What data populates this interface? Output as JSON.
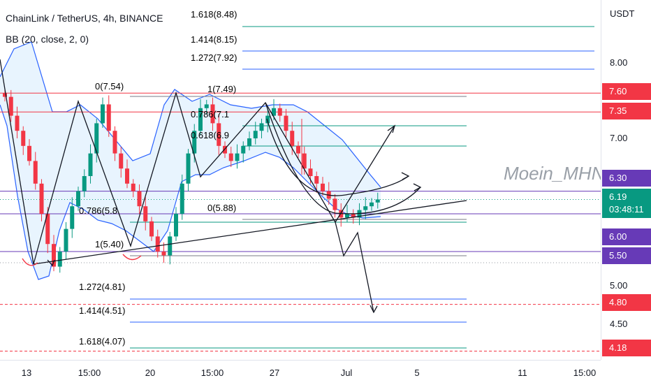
{
  "header": {
    "title": "ChainLink / TetherUS, 4h, BINANCE",
    "indicator": "BB (20, close, 2, 0)",
    "watermark": "Moein_MHN"
  },
  "price_axis": {
    "unit": "USDT",
    "ticks": [
      "8.00",
      "7.00",
      "5.00",
      "4.50"
    ],
    "badges": [
      {
        "label": "7.60",
        "color": "#f23645"
      },
      {
        "label": "7.35",
        "color": "#f23645"
      },
      {
        "label": "6.30",
        "color": "#673ab7"
      },
      {
        "label": "6.19",
        "sub": "03:48:11",
        "color": "#089981"
      },
      {
        "label": "6.00",
        "color": "#673ab7"
      },
      {
        "label": "5.50",
        "color": "#673ab7"
      },
      {
        "label": "4.80",
        "color": "#f23645"
      },
      {
        "label": "4.18",
        "color": "#f23645"
      }
    ]
  },
  "time_axis": {
    "ticks": [
      "13",
      "15:00",
      "20",
      "15:00",
      "27",
      "Jul",
      "5",
      "11",
      "15:00"
    ]
  },
  "fib_labels": [
    {
      "text": "1.618(8.48)",
      "color": "#089981"
    },
    {
      "text": "1.414(8.15)",
      "color": "#2962ff"
    },
    {
      "text": "1.272(7.92)",
      "color": "#2962ff"
    },
    {
      "text": "0(7.54)",
      "color": "#787b86"
    },
    {
      "text": "1(7.49)",
      "color": "#787b86"
    },
    {
      "text": "0.786(7.1",
      "color": "#089981"
    },
    {
      "text": "0.618(6.9",
      "color": "#089981"
    },
    {
      "text": "0.786(5.8",
      "color": "#089981"
    },
    {
      "text": "0(5.88)",
      "color": "#787b86"
    },
    {
      "text": "1(5.40)",
      "color": "#787b86"
    },
    {
      "text": "1.272(4.81)",
      "color": "#2962ff"
    },
    {
      "text": "1.414(4.51)",
      "color": "#2962ff"
    },
    {
      "text": "1.618(4.07)",
      "color": "#089981"
    }
  ],
  "chart_data": {
    "type": "candlestick",
    "symbol": "LINK/USDT",
    "timeframe": "4h",
    "ylim": [
      4.0,
      8.8
    ],
    "horizontal_levels": [
      {
        "price": 7.6,
        "color": "#f23645"
      },
      {
        "price": 7.35,
        "color": "#f23645"
      },
      {
        "price": 6.3,
        "color": "#673ab7"
      },
      {
        "price": 6.0,
        "color": "#673ab7"
      },
      {
        "price": 5.5,
        "color": "#673ab7"
      },
      {
        "price": 4.8,
        "color": "#f23645"
      },
      {
        "price": 4.18,
        "color": "#f23645"
      }
    ],
    "closes": [
      7.55,
      7.3,
      7.1,
      6.9,
      6.7,
      6.4,
      6.0,
      5.6,
      5.3,
      5.5,
      5.8,
      6.1,
      6.3,
      6.5,
      6.8,
      7.2,
      7.45,
      7.1,
      6.8,
      6.6,
      6.4,
      6.3,
      6.1,
      5.9,
      5.7,
      5.5,
      5.45,
      5.7,
      6.0,
      6.4,
      6.8,
      7.1,
      7.4,
      7.45,
      7.2,
      6.9,
      6.8,
      6.7,
      6.8,
      6.9,
      7.0,
      7.1,
      7.2,
      7.3,
      7.4,
      7.3,
      7.1,
      6.9,
      6.8,
      6.6,
      6.5,
      6.4,
      6.3,
      6.2,
      6.05,
      5.95,
      6.0,
      5.95,
      6.05,
      6.1,
      6.15,
      6.19
    ]
  }
}
